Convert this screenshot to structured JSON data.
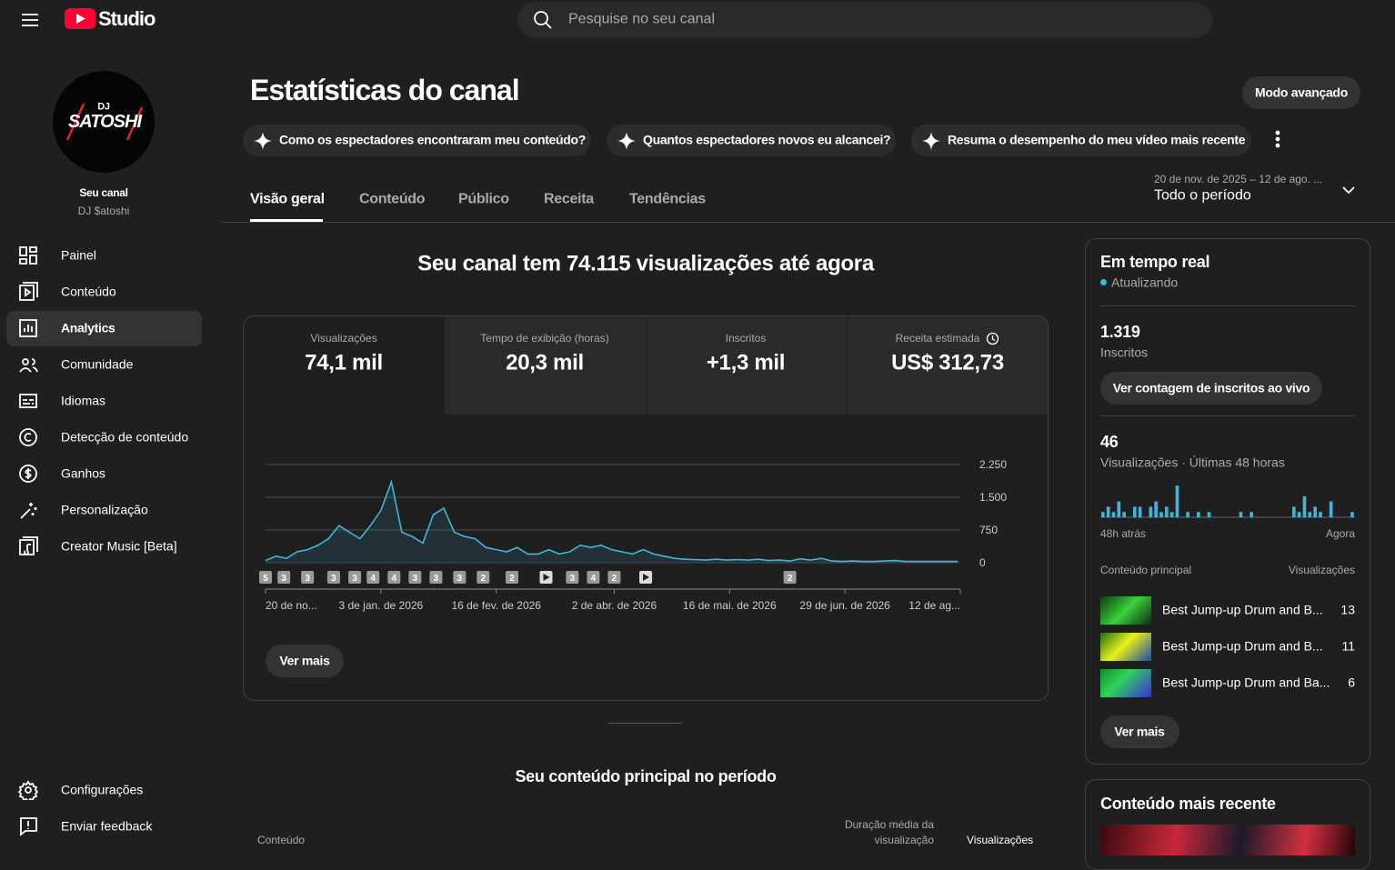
{
  "ui": {
    "header": {
      "logo": "Studio",
      "search": "Pesquise no seu canal"
    },
    "sidebar": {
      "avatar": [
        "DJ",
        "SATOSHI"
      ],
      "label": "Seu canal",
      "channel": "DJ $atoshi",
      "nav": [
        "Painel",
        "Conteúdo",
        "Analytics",
        "Comunidade",
        "Idiomas",
        "Detecção de conteúdo",
        "Ganhos",
        "Personalização",
        "Creator Music [Beta]"
      ],
      "bottom": [
        "Configurações",
        "Enviar feedback"
      ]
    },
    "main": {
      "title": "Estatísticas do canal",
      "advanced": "Modo avançado",
      "suggestions": [
        "Como os espectadores encontraram meu conteúdo?",
        "Quantos espectadores novos eu alcancei?",
        "Resuma o desempenho do meu vídeo mais recente"
      ],
      "tabs": [
        "Visão geral",
        "Conteúdo",
        "Público",
        "Receita",
        "Tendências"
      ],
      "range": "20 de nov. de 2025 – 12 de ago. ...",
      "period": "Todo o período",
      "headline": "Seu canal tem 74.115 visualizações até agora",
      "metrics": [
        {
          "label": "Visualizações",
          "value": "74,1 mil"
        },
        {
          "label": "Tempo de exibição (horas)",
          "value": "20,3 mil"
        },
        {
          "label": "Inscritos",
          "value": "+1,3 mil"
        },
        {
          "label": "Receita estimada",
          "value": "US$ 312,73"
        }
      ],
      "more": "Ver mais",
      "top_title": "Seu conteúdo principal no período",
      "columns": [
        "Conteúdo",
        "Duração média da visualização",
        "Visualizações"
      ]
    },
    "realtime": {
      "title": "Em tempo real",
      "status": "Atualizando",
      "subs": "1.319",
      "subs_label": "Inscritos",
      "live_button": "Ver contagem de inscritos ao vivo",
      "views": "46",
      "views_label": "Visualizações · Últimas 48 horas",
      "start": "48h atrás",
      "end": "Agora",
      "top_label": "Conteúdo principal",
      "top_metric": "Visualizações",
      "items": [
        {
          "title": "Best Jump-up Drum and B...",
          "views": 13
        },
        {
          "title": "Best Jump-up Drum and B...",
          "views": 11
        },
        {
          "title": "Best Jump-up Drum and Ba...",
          "views": 6
        }
      ],
      "more": "Ver mais",
      "recent": "Conteúdo mais recente"
    }
  },
  "chart_data": [
    {
      "type": "line",
      "color": "#3fb5dc",
      "grid": true,
      "x": [
        0,
        4,
        8,
        12,
        16,
        20,
        24,
        28,
        32,
        36,
        40,
        44,
        48,
        52,
        56,
        60,
        64,
        68,
        72,
        76,
        80,
        84,
        88,
        92,
        96,
        100,
        104,
        108,
        112,
        116,
        120,
        124,
        128,
        132,
        136,
        140,
        144,
        148,
        152,
        156,
        160,
        164,
        168,
        172,
        176,
        180,
        184,
        188,
        192,
        196,
        200,
        204,
        208,
        212,
        216,
        220,
        224,
        228,
        232,
        236,
        240,
        244,
        248,
        252,
        256,
        260,
        264
      ],
      "values": [
        50,
        150,
        100,
        250,
        300,
        400,
        550,
        850,
        700,
        550,
        850,
        1200,
        1850,
        700,
        600,
        450,
        1100,
        1250,
        700,
        600,
        550,
        350,
        300,
        250,
        350,
        200,
        200,
        300,
        200,
        250,
        400,
        350,
        400,
        300,
        250,
        200,
        300,
        200,
        150,
        100,
        80,
        70,
        60,
        80,
        60,
        70,
        60,
        80,
        50,
        60,
        40,
        90,
        60,
        100,
        40,
        30,
        40,
        30,
        30,
        40,
        50,
        30,
        30,
        30,
        30,
        30,
        30
      ],
      "xlim": [
        0,
        265
      ],
      "xticks": [
        {
          "value": 0,
          "label": "20 de no..."
        },
        {
          "value": 44,
          "label": "3 de jan. de 2026"
        },
        {
          "value": 88,
          "label": "16 de fev. de 2026"
        },
        {
          "value": 133,
          "label": "2 de abr. de 2026"
        },
        {
          "value": 177,
          "label": "16 de mai. de 2026"
        },
        {
          "value": 221,
          "label": "29 de jun. de 2026"
        },
        {
          "value": 265,
          "label": "12 de ag..."
        }
      ],
      "ylim": [
        0,
        2250
      ],
      "yticks": [
        0,
        750,
        {
          "value": 1500,
          "label": "1.500"
        },
        {
          "value": 2250,
          "label": "2.250"
        }
      ],
      "annotations": [
        {
          "x": 0,
          "label": "5"
        },
        {
          "x": 7,
          "label": "3"
        },
        {
          "x": 16,
          "label": "3"
        },
        {
          "x": 26,
          "label": "3"
        },
        {
          "x": 34,
          "label": "3"
        },
        {
          "x": 41,
          "label": "4"
        },
        {
          "x": 49,
          "label": "4"
        },
        {
          "x": 57,
          "label": "3"
        },
        {
          "x": 65,
          "label": "3"
        },
        {
          "x": 74,
          "label": "3"
        },
        {
          "x": 83,
          "label": "2"
        },
        {
          "x": 94,
          "label": "2"
        },
        {
          "x": 107,
          "label": null
        },
        {
          "x": 117,
          "label": "3"
        },
        {
          "x": 125,
          "label": "4"
        },
        {
          "x": 133,
          "label": "2"
        },
        {
          "x": 145,
          "label": null
        },
        {
          "x": 200,
          "label": "2"
        }
      ]
    },
    {
      "type": "bar",
      "color": "#3fb5dc",
      "values": [
        1,
        2,
        1,
        3,
        1,
        0,
        2,
        2,
        0,
        2,
        3,
        1,
        2,
        1,
        6,
        0,
        1,
        0,
        1,
        0,
        1,
        0,
        0,
        0,
        0,
        0,
        1,
        0,
        1,
        0,
        0,
        0,
        0,
        0,
        0,
        0,
        2,
        1,
        4,
        1,
        2,
        1,
        0,
        3,
        0,
        0,
        0,
        1
      ]
    }
  ]
}
